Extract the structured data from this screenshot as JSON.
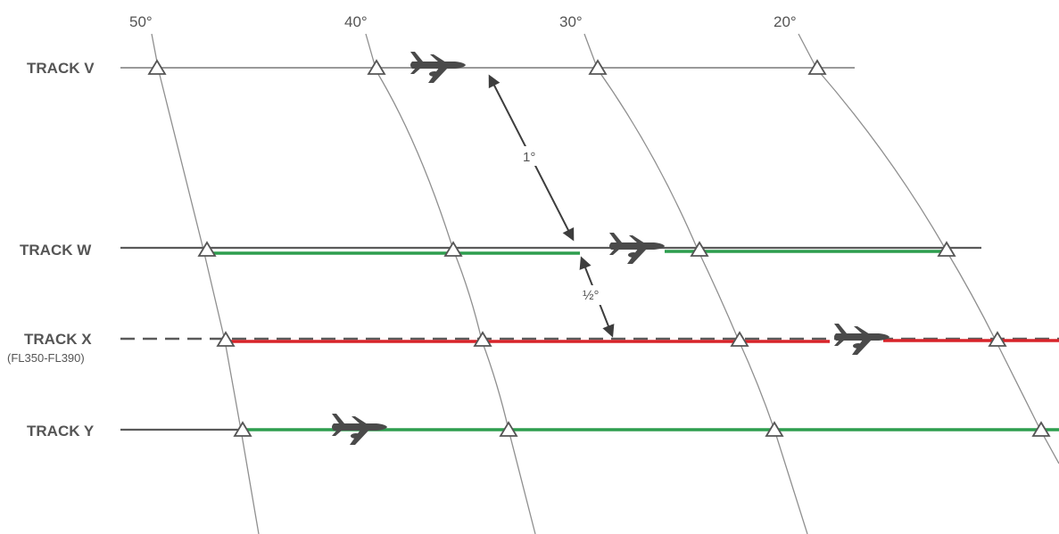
{
  "longitudes": [
    "50°",
    "40°",
    "30°",
    "20°"
  ],
  "tracks": {
    "v": {
      "label": "TRACK V"
    },
    "w": {
      "label": "TRACK W"
    },
    "x": {
      "label": "TRACK X",
      "sublabel": "(FL350-FL390)"
    },
    "y": {
      "label": "TRACK Y"
    }
  },
  "separations": {
    "v_to_w": "1°",
    "w_to_x": "½°"
  },
  "colors": {
    "track_line": "#5a5a5a",
    "green_segment": "#2e9e4f",
    "red_segment": "#d8242a",
    "meridian": "#8f8f8f",
    "aircraft": "#4a4a4a",
    "waypoint": "#555555"
  },
  "icons": [
    "airplane-icon",
    "waypoint-triangle-icon",
    "separation-arrow-icon"
  ]
}
